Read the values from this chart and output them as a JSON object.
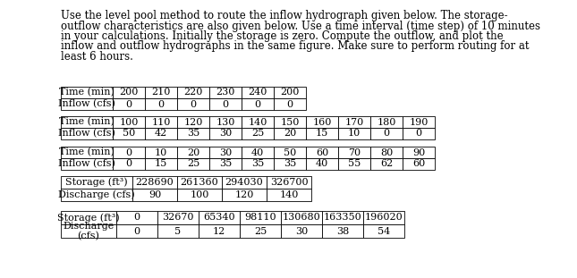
{
  "paragraph": "Use the level pool method to route the inflow hydrograph given below. The storage-outflow characteristics are also given below. Use a time interval (time step) of 10 minutes in your calculations. Initially the storage is zero. Compute the outflow, and plot the inflow and outflow hydrographs in the same figure. Make sure to perform routing for at least 6 hours.",
  "table1_data": [
    [
      "Storage (ft³)",
      "0",
      "32670",
      "65340",
      "98110",
      "130680",
      "163350",
      "196020"
    ],
    [
      "Discharge\n(cfs)",
      "0",
      "5",
      "12",
      "25",
      "30",
      "38",
      "54"
    ]
  ],
  "table2_data": [
    [
      "Storage (ft³)",
      "228690",
      "261360",
      "294030",
      "326700"
    ],
    [
      "Discharge (cfs)",
      "90",
      "100",
      "120",
      "140"
    ]
  ],
  "table3_data": [
    [
      "Time (min)",
      "0",
      "10",
      "20",
      "30",
      "40",
      "50",
      "60",
      "70",
      "80",
      "90"
    ],
    [
      "Inflow (cfs)",
      "0",
      "15",
      "25",
      "35",
      "35",
      "35",
      "40",
      "55",
      "62",
      "60"
    ]
  ],
  "table4_data": [
    [
      "Time (min)",
      "100",
      "110",
      "120",
      "130",
      "140",
      "150",
      "160",
      "170",
      "180",
      "190"
    ],
    [
      "Inflow (cfs)",
      "50",
      "42",
      "35",
      "30",
      "25",
      "20",
      "15",
      "10",
      "0",
      "0"
    ]
  ],
  "table5_data": [
    [
      "Time (min)",
      "200",
      "210",
      "220",
      "230",
      "240",
      "200"
    ],
    [
      "Inflow (cfs)",
      "0",
      "0",
      "0",
      "0",
      "0",
      "0"
    ]
  ],
  "bg_color": "#ffffff",
  "text_color": "#000000",
  "font_size": 8.5,
  "table_font_size": 8.0
}
